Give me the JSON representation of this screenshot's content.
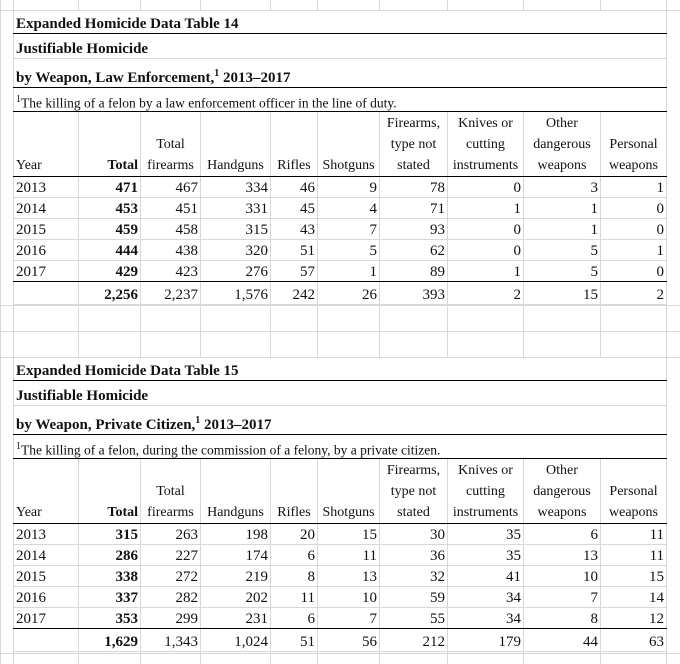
{
  "columns": [
    "Year",
    "Total",
    "Total\nfirearms",
    "Handguns",
    "Rifles",
    "Shotguns",
    "Firearms,\ntype not\nstated",
    "Knives or\ncutting\ninstruments",
    "Other\ndangerous\nweapons",
    "Personal\nweapons"
  ],
  "tables": [
    {
      "title": "Expanded Homicide Data Table 14",
      "subtitle": "Justifiable Homicide",
      "heading": "by Weapon, Law Enforcement,",
      "heading_sup": "1",
      "heading_years": " 2013–2017",
      "footnote_mark": "1",
      "footnote": "The killing of a felon by a law enforcement officer in the line of duty.",
      "rows": [
        [
          "2013",
          "471",
          "467",
          "334",
          "46",
          "9",
          "78",
          "0",
          "3",
          "1"
        ],
        [
          "2014",
          "453",
          "451",
          "331",
          "45",
          "4",
          "71",
          "1",
          "1",
          "0"
        ],
        [
          "2015",
          "459",
          "458",
          "315",
          "43",
          "7",
          "93",
          "0",
          "1",
          "0"
        ],
        [
          "2016",
          "444",
          "438",
          "320",
          "51",
          "5",
          "62",
          "0",
          "5",
          "1"
        ],
        [
          "2017",
          "429",
          "423",
          "276",
          "57",
          "1",
          "89",
          "1",
          "5",
          "0"
        ]
      ],
      "totals": [
        "",
        "2,256",
        "2,237",
        "1,576",
        "242",
        "26",
        "393",
        "2",
        "15",
        "2"
      ]
    },
    {
      "title": "Expanded Homicide Data Table 15",
      "subtitle": "Justifiable Homicide",
      "heading": "by Weapon, Private Citizen,",
      "heading_sup": "1",
      "heading_years": " 2013–2017",
      "footnote_mark": "1",
      "footnote": "The killing of a felon, during the commission of a felony, by a private citizen.",
      "rows": [
        [
          "2013",
          "315",
          "263",
          "198",
          "20",
          "15",
          "30",
          "35",
          "6",
          "11"
        ],
        [
          "2014",
          "286",
          "227",
          "174",
          "6",
          "11",
          "36",
          "35",
          "13",
          "11"
        ],
        [
          "2015",
          "338",
          "272",
          "219",
          "8",
          "13",
          "32",
          "41",
          "10",
          "15"
        ],
        [
          "2016",
          "337",
          "282",
          "202",
          "11",
          "10",
          "59",
          "34",
          "7",
          "14"
        ],
        [
          "2017",
          "353",
          "299",
          "231",
          "6",
          "7",
          "55",
          "34",
          "8",
          "12"
        ]
      ],
      "totals": [
        "",
        "1,629",
        "1,343",
        "1,024",
        "51",
        "56",
        "212",
        "179",
        "44",
        "63"
      ]
    }
  ]
}
